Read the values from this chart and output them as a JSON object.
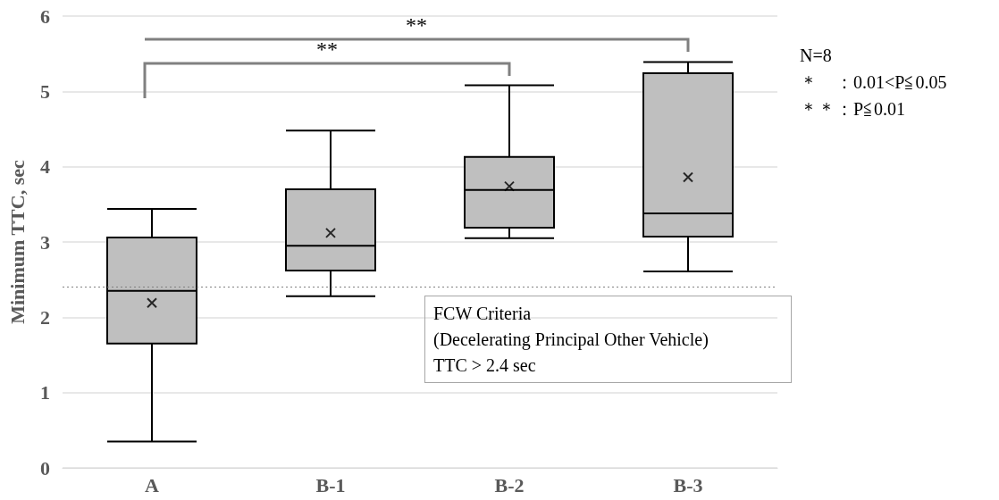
{
  "chart_data": {
    "type": "box",
    "ylabel": "Minimum TTC, sec",
    "categories": [
      "A",
      "B-1",
      "B-2",
      "B-3"
    ],
    "boxes": [
      {
        "low": 0.35,
        "q1": 1.65,
        "median": 2.35,
        "q3": 3.06,
        "high": 3.44,
        "mean": 2.19
      },
      {
        "low": 2.28,
        "q1": 2.62,
        "median": 2.95,
        "q3": 3.7,
        "high": 4.48,
        "mean": 3.12
      },
      {
        "low": 3.05,
        "q1": 3.19,
        "median": 3.69,
        "q3": 4.13,
        "high": 5.08,
        "mean": 3.74
      },
      {
        "low": 2.61,
        "q1": 3.07,
        "median": 3.38,
        "q3": 5.24,
        "high": 5.39,
        "mean": 3.86
      }
    ],
    "color": "#bfbfbf",
    "ylim": [
      0,
      6
    ],
    "yticks": [
      0,
      1,
      2,
      3,
      4,
      5,
      6
    ],
    "grid": "y",
    "ref_lines": [
      {
        "axis": "y",
        "value": 2.4,
        "label": "FCW Criteria\n(Decelerating Principal Other Vehicle)\nTTC > 2.4 sec",
        "color": "#808080",
        "line_style": "dotted"
      }
    ],
    "annotations": [
      "**",
      "**",
      "N=8",
      "＊　：0.01<P≦0.05",
      "＊＊：P≦0.01"
    ]
  }
}
